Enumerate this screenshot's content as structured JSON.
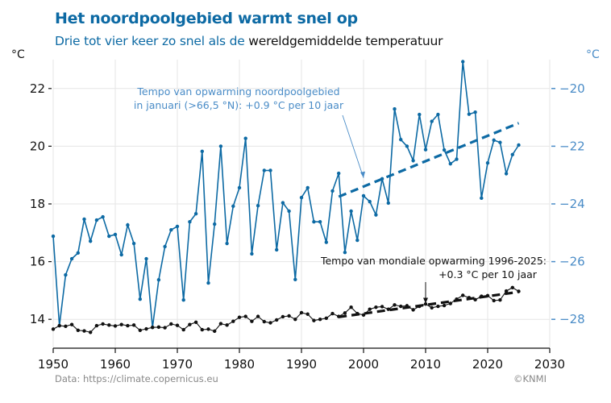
{
  "title": "Het noordpoolgebied warmt snel op",
  "subtitle_blue": "Drie tot vier keer zo snel als de",
  "subtitle_dark": "wereldgemiddelde temperatuur",
  "source": "Data: https://climate.copernicus.eu",
  "credit": "©KNMI",
  "colors": {
    "arctic": "#0d6aa4",
    "arctic_axis": "#4a8cc7",
    "global": "#111111",
    "grid": "#e6e6e6"
  },
  "chart_data": {
    "type": "line",
    "xlim": [
      1950,
      2030
    ],
    "xticks": [
      1950,
      1960,
      1970,
      1980,
      1990,
      2000,
      2010,
      2020,
      2030
    ],
    "left_axis": {
      "label": "°C",
      "ylim": [
        13,
        23
      ],
      "ticks": [
        14,
        16,
        18,
        20,
        22
      ]
    },
    "right_axis": {
      "label": "°C",
      "ylim": [
        -29,
        -19
      ],
      "ticks": [
        -28,
        -26,
        -24,
        -22,
        -20
      ]
    },
    "grid": true,
    "x": [
      1950,
      1951,
      1952,
      1953,
      1954,
      1955,
      1956,
      1957,
      1958,
      1959,
      1960,
      1961,
      1962,
      1963,
      1964,
      1965,
      1966,
      1967,
      1968,
      1969,
      1970,
      1971,
      1972,
      1973,
      1974,
      1975,
      1976,
      1977,
      1978,
      1979,
      1980,
      1981,
      1982,
      1983,
      1984,
      1985,
      1986,
      1987,
      1988,
      1989,
      1990,
      1991,
      1992,
      1993,
      1994,
      1995,
      1996,
      1997,
      1998,
      1999,
      2000,
      2001,
      2002,
      2003,
      2004,
      2005,
      2006,
      2007,
      2008,
      2009,
      2010,
      2011,
      2012,
      2013,
      2014,
      2015,
      2016,
      2017,
      2018,
      2019,
      2020,
      2021,
      2022,
      2023,
      2024,
      2025
    ],
    "series": [
      {
        "axis": "right",
        "color": "#0d6aa4",
        "values": [
          -25.12,
          -28.22,
          -26.46,
          -25.9,
          -25.7,
          -24.53,
          -25.29,
          -24.56,
          -24.45,
          -25.12,
          -25.06,
          -25.76,
          -24.73,
          -25.37,
          -27.3,
          -25.9,
          -28.28,
          -26.63,
          -25.48,
          -24.9,
          -24.78,
          -27.33,
          -24.62,
          -24.34,
          -22.18,
          -26.74,
          -24.7,
          -22.0,
          -25.37,
          -24.08,
          -23.44,
          -21.73,
          -25.73,
          -24.06,
          -22.84,
          -22.84,
          -25.59,
          -23.96,
          -24.25,
          -26.62,
          -23.78,
          -23.44,
          -24.62,
          -24.62,
          -25.33,
          -23.55,
          -22.94,
          -25.68,
          -24.25,
          -25.26,
          -23.72,
          -23.92,
          -24.38,
          -23.13,
          -23.97,
          -20.71,
          -21.77,
          -22.0,
          -22.5,
          -20.9,
          -22.12,
          -21.14,
          -20.9,
          -22.13,
          -22.61,
          -22.45,
          -19.07,
          -20.89,
          -20.82,
          -23.8,
          -22.58,
          -21.79,
          -21.87,
          -22.95,
          -22.29,
          -21.96
        ]
      },
      {
        "axis": "left",
        "color": "#111111",
        "values": [
          13.66,
          13.78,
          13.76,
          13.82,
          13.62,
          13.6,
          13.55,
          13.78,
          13.84,
          13.8,
          13.77,
          13.82,
          13.78,
          13.8,
          13.62,
          13.67,
          13.72,
          13.73,
          13.71,
          13.84,
          13.79,
          13.64,
          13.82,
          13.9,
          13.64,
          13.66,
          13.59,
          13.85,
          13.8,
          13.93,
          14.07,
          14.1,
          13.93,
          14.1,
          13.92,
          13.88,
          13.98,
          14.09,
          14.12,
          14.0,
          14.23,
          14.18,
          13.96,
          14.0,
          14.04,
          14.2,
          14.1,
          14.22,
          14.42,
          14.2,
          14.15,
          14.35,
          14.42,
          14.44,
          14.35,
          14.5,
          14.45,
          14.47,
          14.33,
          14.45,
          14.53,
          14.4,
          14.45,
          14.48,
          14.55,
          14.7,
          14.83,
          14.75,
          14.68,
          14.8,
          14.82,
          14.65,
          14.67,
          14.98,
          15.1,
          14.97
        ]
      }
    ],
    "trends": [
      {
        "axis": "right",
        "color": "#0d6aa4",
        "x": [
          1996,
          2025
        ],
        "y": [
          -23.75,
          -21.2
        ]
      },
      {
        "axis": "left",
        "color": "#111111",
        "x": [
          1996,
          2025
        ],
        "y": [
          14.08,
          14.95
        ]
      }
    ],
    "annotations": [
      {
        "lines": [
          "Tempo van opwarming noordpoolgebied",
          "in januari (>66,5 °N): +0.9 °C per 10 jaar"
        ],
        "color": "#4a8cc7",
        "arrow_to": [
          2000,
          -23.1
        ]
      },
      {
        "lines": [
          "Tempo van mondiale opwarming 1996-2025:",
          "+0.3 °C per 10 jaar"
        ],
        "color": "#111111",
        "arrow_to": [
          2010,
          14.55
        ]
      }
    ]
  }
}
